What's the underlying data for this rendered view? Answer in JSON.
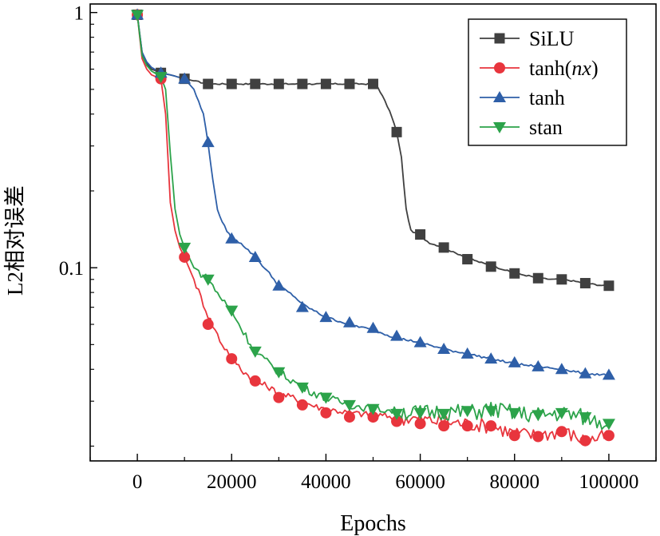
{
  "chart_data": {
    "type": "line",
    "title": "",
    "xlabel": "Epochs",
    "ylabel": "L2相对误差",
    "xlim": [
      -10000,
      110000
    ],
    "ylim_log": [
      0.0175,
      1.08
    ],
    "xscale": "linear",
    "yscale": "log",
    "x_ticks": [
      0,
      20000,
      40000,
      60000,
      80000,
      100000
    ],
    "x_tick_labels": [
      "0",
      "20000",
      "40000",
      "60000",
      "80000",
      "100000"
    ],
    "y_ticks": [
      1,
      0.1
    ],
    "y_tick_labels": [
      "1",
      "0.1"
    ],
    "legend_position": "top-right",
    "series": [
      {
        "name": "SiLU",
        "name_base": "SiLU",
        "name_italic": "",
        "name_tail": "",
        "color": "#404040",
        "marker": "square",
        "x": [
          0,
          1000,
          2000,
          3000,
          5000,
          7000,
          10000,
          15000,
          20000,
          25000,
          30000,
          35000,
          40000,
          45000,
          50000,
          51000,
          52000,
          53000,
          54000,
          55000,
          56000,
          57000,
          58000,
          60000,
          62000,
          65000,
          67000,
          70000,
          72000,
          75000,
          78000,
          80000,
          83000,
          85000,
          88000,
          90000,
          92000,
          95000,
          97000,
          99000,
          100000
        ],
        "y": [
          0.98,
          0.7,
          0.63,
          0.6,
          0.58,
          0.57,
          0.55,
          0.525,
          0.525,
          0.525,
          0.525,
          0.525,
          0.525,
          0.525,
          0.525,
          0.51,
          0.47,
          0.43,
          0.39,
          0.34,
          0.27,
          0.17,
          0.14,
          0.133,
          0.125,
          0.12,
          0.115,
          0.11,
          0.106,
          0.102,
          0.098,
          0.095,
          0.093,
          0.091,
          0.09,
          0.09,
          0.089,
          0.087,
          0.086,
          0.085,
          0.085
        ],
        "marker_x": [
          0,
          5000,
          10000,
          15000,
          20000,
          25000,
          30000,
          35000,
          40000,
          45000,
          50000,
          55000,
          60000,
          65000,
          70000,
          75000,
          80000,
          85000,
          90000,
          95000,
          100000
        ],
        "marker_y": [
          0.98,
          0.58,
          0.55,
          0.525,
          0.525,
          0.525,
          0.525,
          0.525,
          0.525,
          0.525,
          0.525,
          0.34,
          0.135,
          0.12,
          0.108,
          0.101,
          0.095,
          0.091,
          0.09,
          0.087,
          0.085
        ]
      },
      {
        "name": "tanh(nx)",
        "name_base": "tanh(",
        "name_italic": "nx",
        "name_tail": ")",
        "color": "#e8353d",
        "marker": "circle",
        "x": [
          0,
          1000,
          2000,
          3000,
          5000,
          6000,
          7000,
          8000,
          9000,
          10000,
          12000,
          15000,
          18000,
          20000,
          22000,
          25000,
          28000,
          30000,
          33000,
          35000,
          38000,
          40000,
          45000,
          50000,
          55000,
          60000,
          65000,
          70000,
          75000,
          80000,
          85000,
          90000,
          95000,
          100000
        ],
        "y": [
          0.98,
          0.66,
          0.6,
          0.57,
          0.55,
          0.4,
          0.18,
          0.14,
          0.12,
          0.11,
          0.09,
          0.065,
          0.05,
          0.045,
          0.04,
          0.036,
          0.034,
          0.032,
          0.031,
          0.03,
          0.0285,
          0.028,
          0.027,
          0.0265,
          0.026,
          0.0255,
          0.025,
          0.0245,
          0.024,
          0.0225,
          0.022,
          0.023,
          0.021,
          0.022
        ],
        "marker_x": [
          0,
          5000,
          10000,
          15000,
          20000,
          25000,
          30000,
          35000,
          40000,
          45000,
          50000,
          55000,
          60000,
          65000,
          70000,
          75000,
          80000,
          85000,
          90000,
          95000,
          100000
        ],
        "marker_y": [
          0.98,
          0.55,
          0.11,
          0.06,
          0.044,
          0.036,
          0.031,
          0.029,
          0.027,
          0.026,
          0.026,
          0.025,
          0.0245,
          0.024,
          0.024,
          0.024,
          0.022,
          0.0218,
          0.0228,
          0.021,
          0.022
        ]
      },
      {
        "name": "tanh",
        "name_base": "tanh",
        "name_italic": "",
        "name_tail": "",
        "color": "#2e5fa8",
        "marker": "triangle-up",
        "x": [
          0,
          1000,
          2000,
          3000,
          5000,
          7000,
          10000,
          12000,
          14000,
          15000,
          16000,
          17000,
          18000,
          19000,
          20000,
          22000,
          25000,
          28000,
          30000,
          33000,
          35000,
          38000,
          40000,
          45000,
          50000,
          55000,
          60000,
          65000,
          70000,
          75000,
          80000,
          85000,
          90000,
          95000,
          100000
        ],
        "y": [
          0.98,
          0.7,
          0.64,
          0.61,
          0.58,
          0.57,
          0.55,
          0.5,
          0.4,
          0.31,
          0.22,
          0.17,
          0.15,
          0.14,
          0.13,
          0.125,
          0.11,
          0.095,
          0.085,
          0.078,
          0.072,
          0.067,
          0.064,
          0.06,
          0.057,
          0.053,
          0.051,
          0.048,
          0.046,
          0.044,
          0.042,
          0.041,
          0.04,
          0.0385,
          0.038
        ],
        "marker_x": [
          0,
          5000,
          10000,
          15000,
          20000,
          25000,
          30000,
          35000,
          40000,
          45000,
          50000,
          55000,
          60000,
          65000,
          70000,
          75000,
          80000,
          85000,
          90000,
          95000,
          100000
        ],
        "marker_y": [
          0.98,
          0.58,
          0.55,
          0.31,
          0.13,
          0.11,
          0.085,
          0.07,
          0.064,
          0.061,
          0.058,
          0.054,
          0.051,
          0.048,
          0.046,
          0.044,
          0.0425,
          0.041,
          0.04,
          0.0385,
          0.038
        ]
      },
      {
        "name": "stan",
        "name_base": "stan",
        "name_italic": "",
        "name_tail": "",
        "color": "#2ca34a",
        "marker": "triangle-down",
        "x": [
          0,
          1000,
          2000,
          3000,
          5000,
          6000,
          7000,
          8000,
          9000,
          10000,
          12000,
          15000,
          18000,
          20000,
          22000,
          25000,
          28000,
          30000,
          33000,
          35000,
          38000,
          40000,
          45000,
          50000,
          55000,
          60000,
          65000,
          70000,
          75000,
          80000,
          85000,
          90000,
          95000,
          100000
        ],
        "y": [
          0.98,
          0.68,
          0.62,
          0.59,
          0.56,
          0.5,
          0.28,
          0.17,
          0.135,
          0.12,
          0.1,
          0.09,
          0.075,
          0.068,
          0.058,
          0.047,
          0.042,
          0.039,
          0.036,
          0.034,
          0.032,
          0.031,
          0.029,
          0.028,
          0.0275,
          0.027,
          0.0275,
          0.027,
          0.028,
          0.027,
          0.0265,
          0.027,
          0.026,
          0.0245
        ],
        "marker_x": [
          0,
          5000,
          10000,
          15000,
          20000,
          25000,
          30000,
          35000,
          40000,
          45000,
          50000,
          55000,
          60000,
          65000,
          70000,
          75000,
          80000,
          85000,
          90000,
          95000,
          100000
        ],
        "marker_y": [
          0.98,
          0.56,
          0.12,
          0.09,
          0.068,
          0.047,
          0.039,
          0.034,
          0.031,
          0.029,
          0.028,
          0.0268,
          0.027,
          0.0268,
          0.0275,
          0.0275,
          0.027,
          0.0265,
          0.027,
          0.026,
          0.0245
        ]
      }
    ]
  }
}
